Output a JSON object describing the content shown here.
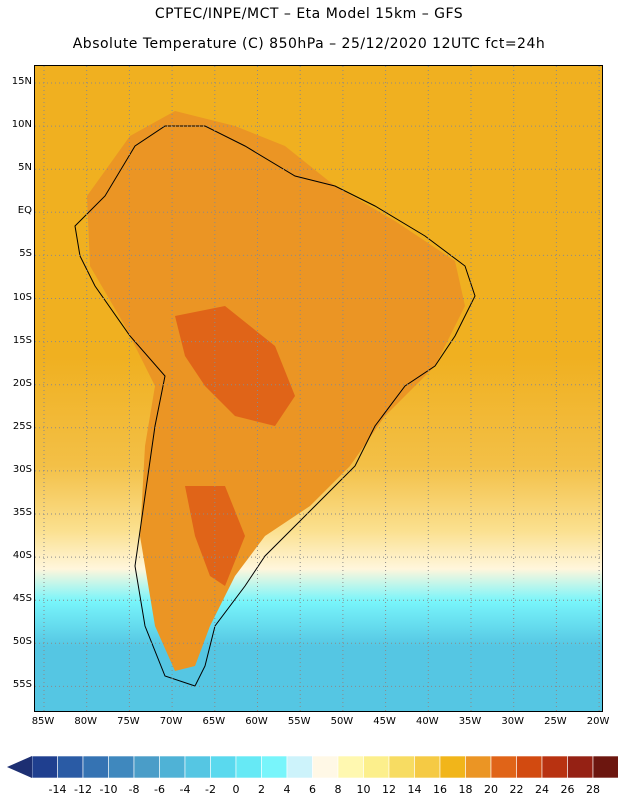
{
  "header": {
    "line1": "CPTEC/INPE/MCT –  Eta Model 15km – GFS",
    "line2": "Absolute Temperature (C) 850hPa – 25/12/2020 12UTC fct=24h"
  },
  "axes": {
    "lat_labels": [
      "15N",
      "10N",
      "5N",
      "EQ",
      "5S",
      "10S",
      "15S",
      "20S",
      "25S",
      "30S",
      "35S",
      "40S",
      "45S",
      "50S",
      "55S"
    ],
    "lon_labels": [
      "85W",
      "80W",
      "75W",
      "70W",
      "65W",
      "60W",
      "55W",
      "50W",
      "45W",
      "40W",
      "35W",
      "30W",
      "25W",
      "20W"
    ]
  },
  "colorbar": {
    "labels": [
      "-14",
      "-12",
      "-10",
      "-8",
      "-6",
      "-4",
      "-2",
      "0",
      "2",
      "4",
      "6",
      "8",
      "10",
      "12",
      "14",
      "16",
      "18",
      "20",
      "22",
      "24",
      "26",
      "28"
    ],
    "colors": [
      "#1f3f8f",
      "#2a5ba5",
      "#3573b3",
      "#3f88be",
      "#4a9dc8",
      "#4fb2d6",
      "#55c6e3",
      "#5ad9ee",
      "#66e9f5",
      "#78f5fb",
      "#cdf3fb",
      "#fff8e6",
      "#fff8b0",
      "#fcef8c",
      "#f7dc62",
      "#f5ca44",
      "#f1b51a",
      "#eb9524",
      "#e06418",
      "#d24a10",
      "#b83211",
      "#952114",
      "#6c160f"
    ],
    "end_low": "#1d2f72",
    "end_high": "#7a0a2a"
  },
  "field_colors": {
    "ocean_north": "#f0b020",
    "ocean_mid": "#f3c047",
    "ocean_south": "#fbe08f",
    "pale": "#fff6dc",
    "cyan": "#78f5fb",
    "blue": "#55c6e3",
    "land_warm": "#eb9524",
    "land_hot": "#e06418",
    "coast_line": "#000000"
  }
}
